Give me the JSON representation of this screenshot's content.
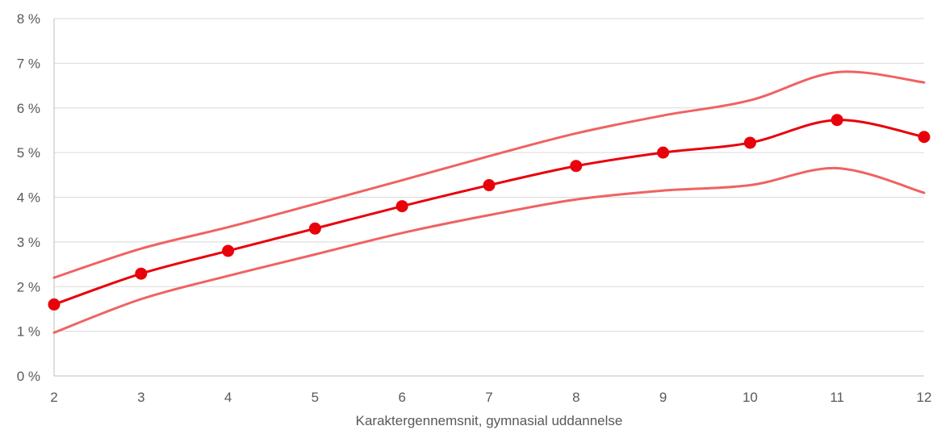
{
  "chart_data": {
    "type": "line",
    "title": "",
    "xlabel": "Karaktergennemsnit, gymnasial uddannelse",
    "ylabel": "",
    "x": [
      2,
      3,
      4,
      5,
      6,
      7,
      8,
      9,
      10,
      11,
      12
    ],
    "xlim": [
      2,
      12
    ],
    "ylim": [
      0,
      8
    ],
    "y_ticks": [
      0,
      1,
      2,
      3,
      4,
      5,
      6,
      7,
      8
    ],
    "y_tick_labels": [
      "0 %",
      "1 %",
      "2 %",
      "3 %",
      "4 %",
      "5 %",
      "6 %",
      "7 %",
      "8 %"
    ],
    "x_tick_labels": [
      "2",
      "3",
      "4",
      "5",
      "6",
      "7",
      "8",
      "9",
      "10",
      "11",
      "12"
    ],
    "grid": true,
    "legend": "none",
    "series": [
      {
        "role": "upper-bound",
        "color": "#f06262",
        "markers": false,
        "values": [
          2.2,
          2.85,
          3.33,
          3.85,
          4.38,
          4.92,
          5.43,
          5.83,
          6.17,
          6.8,
          6.57
        ]
      },
      {
        "role": "estimate",
        "color": "#e8000b",
        "markers": true,
        "values": [
          1.6,
          2.29,
          2.8,
          3.3,
          3.8,
          4.27,
          4.7,
          5.0,
          5.22,
          5.73,
          5.35
        ]
      },
      {
        "role": "lower-bound",
        "color": "#f06262",
        "markers": false,
        "values": [
          0.97,
          1.72,
          2.24,
          2.72,
          3.2,
          3.6,
          3.95,
          4.15,
          4.27,
          4.65,
          4.1
        ]
      }
    ]
  }
}
